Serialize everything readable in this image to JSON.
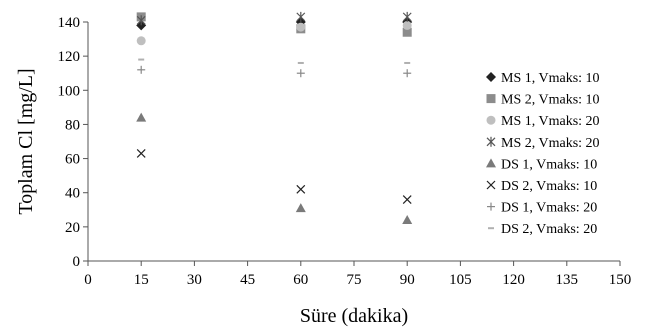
{
  "chart_data": {
    "type": "scatter",
    "title": "",
    "xlabel": "Süre (dakika)",
    "ylabel": "Toplam Cl [mg/L]",
    "xlim": [
      0,
      150
    ],
    "ylim": [
      0,
      140
    ],
    "xticks": [
      0,
      15,
      30,
      45,
      60,
      75,
      90,
      105,
      120,
      135,
      150
    ],
    "yticks": [
      0,
      20,
      40,
      60,
      80,
      100,
      120,
      140
    ],
    "grid": false,
    "legend": "right",
    "series": [
      {
        "name": "MS 1, Vmaks: 10",
        "marker": "diamond",
        "color": "#222222",
        "x": [
          15,
          60,
          90
        ],
        "y": [
          138,
          140,
          140
        ]
      },
      {
        "name": "MS 2, Vmaks: 10",
        "marker": "square",
        "color": "#8c8c8c",
        "x": [
          15,
          60,
          90
        ],
        "y": [
          143,
          136,
          134
        ]
      },
      {
        "name": "MS 1, Vmaks: 20",
        "marker": "circle",
        "color": "#bfbfbf",
        "x": [
          15,
          60,
          90
        ],
        "y": [
          129,
          137,
          138
        ]
      },
      {
        "name": "MS 2, Vmaks: 20",
        "marker": "star",
        "color": "#555555",
        "x": [
          15,
          60,
          90
        ],
        "y": [
          141,
          143,
          143
        ]
      },
      {
        "name": "DS 1, Vmaks: 10",
        "marker": "triangle",
        "color": "#7a7a7a",
        "x": [
          15,
          60,
          90
        ],
        "y": [
          84,
          31,
          24
        ]
      },
      {
        "name": "DS 2, Vmaks: 10",
        "marker": "x",
        "color": "#222222",
        "x": [
          15,
          60,
          90
        ],
        "y": [
          63,
          42,
          36
        ]
      },
      {
        "name": "DS 1, Vmaks: 20",
        "marker": "plus",
        "color": "#888888",
        "x": [
          15,
          60,
          90
        ],
        "y": [
          112,
          110,
          110
        ]
      },
      {
        "name": "DS 2, Vmaks: 20",
        "marker": "dash",
        "color": "#b0b0b0",
        "x": [
          15,
          60,
          90
        ],
        "y": [
          118,
          116,
          116
        ]
      }
    ]
  }
}
